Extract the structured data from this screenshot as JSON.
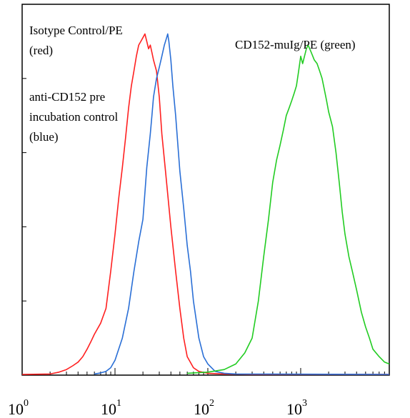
{
  "chart_data": {
    "type": "line",
    "x_scale": "log",
    "xlim": [
      1,
      9000
    ],
    "ylim": [
      0,
      100
    ],
    "grid": false,
    "x_ticks": [
      {
        "base": "10",
        "exp": "0",
        "value": 1
      },
      {
        "base": "10",
        "exp": "1",
        "value": 10
      },
      {
        "base": "10",
        "exp": "2",
        "value": 100
      },
      {
        "base": "10",
        "exp": "3",
        "value": 1000
      }
    ],
    "annotations": [
      {
        "id": "iso",
        "lines": [
          "Isotype Control/PE",
          "(red)"
        ]
      },
      {
        "id": "pre",
        "lines": [
          "anti-CD152 pre",
          "incubation control",
          "(blue)"
        ]
      },
      {
        "id": "cd",
        "lines": [
          "CD152-muIg/PE (green)"
        ]
      }
    ],
    "series": [
      {
        "color": "#ff2020",
        "points": [
          [
            1,
            0.2
          ],
          [
            2,
            0.3
          ],
          [
            2.5,
            0.8
          ],
          [
            3,
            1.5
          ],
          [
            3.5,
            2.5
          ],
          [
            4,
            3.5
          ],
          [
            4.5,
            5
          ],
          [
            5,
            7
          ],
          [
            5.5,
            9
          ],
          [
            6,
            11
          ],
          [
            7,
            14
          ],
          [
            8,
            18
          ],
          [
            9,
            28
          ],
          [
            10,
            38
          ],
          [
            11,
            48
          ],
          [
            12,
            56
          ],
          [
            13,
            64
          ],
          [
            14,
            72
          ],
          [
            15,
            78
          ],
          [
            16,
            82
          ],
          [
            17,
            86
          ],
          [
            18,
            89
          ],
          [
            19,
            90
          ],
          [
            20,
            91
          ],
          [
            21,
            92
          ],
          [
            22,
            90
          ],
          [
            23,
            88
          ],
          [
            24,
            89
          ],
          [
            25,
            87
          ],
          [
            26,
            85
          ],
          [
            28,
            82
          ],
          [
            30,
            75
          ],
          [
            32,
            65
          ],
          [
            35,
            55
          ],
          [
            40,
            40
          ],
          [
            45,
            28
          ],
          [
            50,
            18
          ],
          [
            55,
            10
          ],
          [
            60,
            5
          ],
          [
            70,
            2
          ],
          [
            80,
            1
          ],
          [
            100,
            0.5
          ],
          [
            150,
            0.3
          ],
          [
            300,
            0.2
          ],
          [
            9000,
            0.2
          ]
        ]
      },
      {
        "color": "#2a6fd6",
        "points": [
          [
            6,
            0.3
          ],
          [
            7,
            0.6
          ],
          [
            8,
            1
          ],
          [
            9,
            2
          ],
          [
            10,
            4
          ],
          [
            12,
            10
          ],
          [
            14,
            18
          ],
          [
            16,
            28
          ],
          [
            18,
            36
          ],
          [
            20,
            42
          ],
          [
            22,
            56
          ],
          [
            24,
            65
          ],
          [
            25,
            70
          ],
          [
            26,
            75
          ],
          [
            28,
            80
          ],
          [
            30,
            83
          ],
          [
            32,
            86
          ],
          [
            34,
            89
          ],
          [
            36,
            91
          ],
          [
            37,
            92
          ],
          [
            38,
            90
          ],
          [
            40,
            85
          ],
          [
            42,
            78
          ],
          [
            45,
            70
          ],
          [
            50,
            55
          ],
          [
            55,
            45
          ],
          [
            60,
            35
          ],
          [
            65,
            28
          ],
          [
            70,
            20
          ],
          [
            80,
            10
          ],
          [
            90,
            5
          ],
          [
            100,
            3
          ],
          [
            120,
            1
          ],
          [
            150,
            0.5
          ],
          [
            200,
            0.3
          ],
          [
            9000,
            0.2
          ]
        ]
      },
      {
        "color": "#22cc22",
        "points": [
          [
            60,
            0.5
          ],
          [
            100,
            0.8
          ],
          [
            150,
            1.5
          ],
          [
            200,
            3
          ],
          [
            250,
            6
          ],
          [
            300,
            10
          ],
          [
            350,
            20
          ],
          [
            400,
            32
          ],
          [
            450,
            42
          ],
          [
            500,
            52
          ],
          [
            550,
            58
          ],
          [
            600,
            62
          ],
          [
            650,
            66
          ],
          [
            700,
            70
          ],
          [
            750,
            72
          ],
          [
            800,
            74
          ],
          [
            850,
            76
          ],
          [
            900,
            78
          ],
          [
            950,
            82
          ],
          [
            1000,
            86
          ],
          [
            1050,
            84
          ],
          [
            1100,
            86
          ],
          [
            1150,
            88
          ],
          [
            1200,
            89
          ],
          [
            1250,
            88
          ],
          [
            1300,
            87
          ],
          [
            1350,
            86
          ],
          [
            1400,
            85
          ],
          [
            1500,
            84
          ],
          [
            1600,
            82
          ],
          [
            1700,
            80
          ],
          [
            1800,
            77
          ],
          [
            1900,
            74
          ],
          [
            2000,
            71
          ],
          [
            2200,
            67
          ],
          [
            2400,
            60
          ],
          [
            2600,
            52
          ],
          [
            2800,
            44
          ],
          [
            3000,
            38
          ],
          [
            3300,
            32
          ],
          [
            3600,
            28
          ],
          [
            4000,
            23
          ],
          [
            4500,
            17
          ],
          [
            5000,
            13
          ],
          [
            5500,
            10
          ],
          [
            6000,
            7
          ],
          [
            7000,
            5
          ],
          [
            8000,
            3.5
          ],
          [
            9000,
            3
          ]
        ]
      }
    ]
  }
}
